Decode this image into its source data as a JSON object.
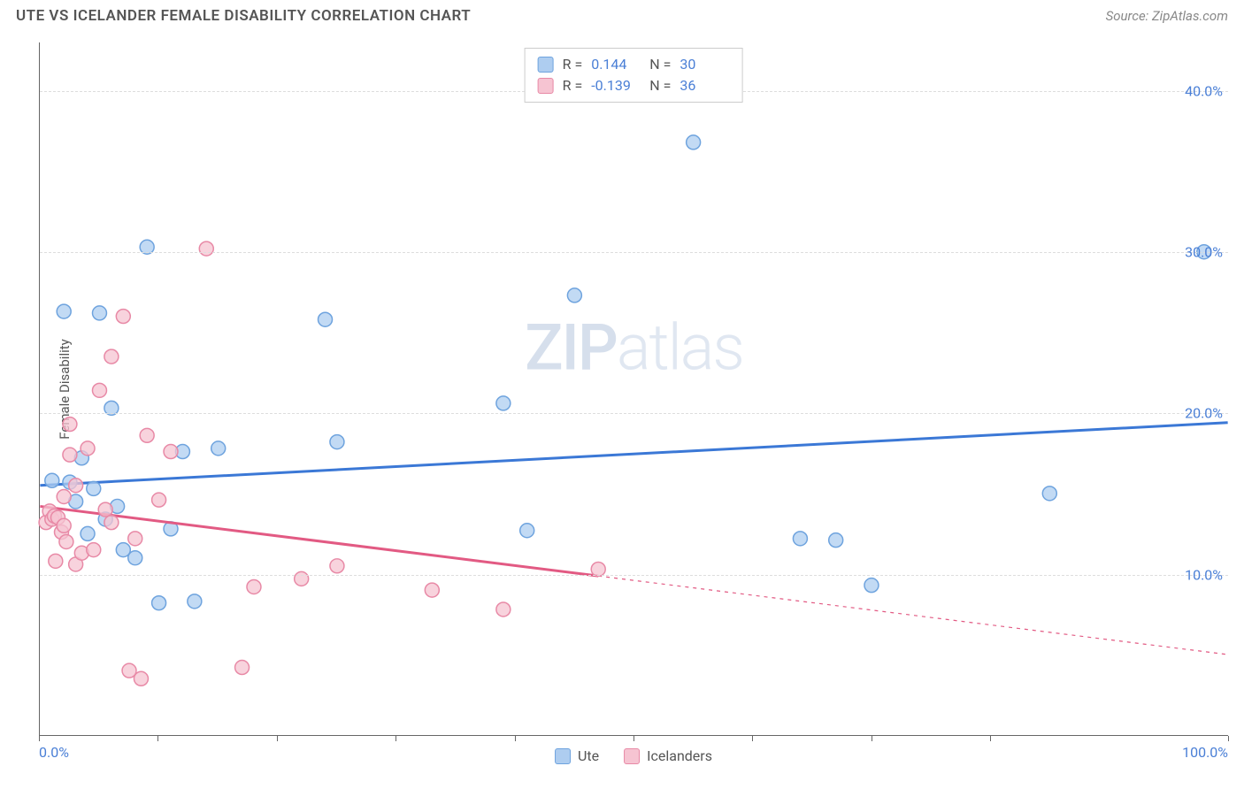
{
  "header": {
    "title": "UTE VS ICELANDER FEMALE DISABILITY CORRELATION CHART",
    "source": "Source: ZipAtlas.com"
  },
  "watermark": {
    "zip": "ZIP",
    "atlas": "atlas"
  },
  "chart": {
    "type": "scatter",
    "y_axis_label": "Female Disability",
    "xlim": [
      0,
      100
    ],
    "ylim": [
      0,
      43
    ],
    "x_ticks": [
      0,
      10,
      20,
      30,
      40,
      50,
      60,
      70,
      80,
      100
    ],
    "x_tick_labels": {
      "0": "0.0%",
      "100": "100.0%"
    },
    "y_ticks": [
      10,
      20,
      30,
      40
    ],
    "y_tick_labels": {
      "10": "10.0%",
      "20": "20.0%",
      "30": "30.0%",
      "40": "40.0%"
    },
    "grid_color": "#dddddd",
    "axis_color": "#666666",
    "background_color": "#ffffff",
    "marker_radius": 8,
    "marker_stroke_width": 1.5,
    "line_width": 3,
    "series": [
      {
        "name": "Ute",
        "fill": "#aecdf0",
        "stroke": "#6ea3de",
        "line_color": "#3b78d6",
        "r_value": "0.144",
        "n_value": "30",
        "trend": {
          "x1": 0,
          "y1": 15.5,
          "x2": 100,
          "y2": 19.4,
          "dash_after_x": null
        },
        "points": [
          [
            1,
            15.8
          ],
          [
            2,
            26.3
          ],
          [
            3,
            14.5
          ],
          [
            3.5,
            17.2
          ],
          [
            4,
            12.5
          ],
          [
            5,
            26.2
          ],
          [
            6,
            20.3
          ],
          [
            6.5,
            14.2
          ],
          [
            8,
            11.0
          ],
          [
            9,
            30.3
          ],
          [
            10,
            8.2
          ],
          [
            11,
            12.8
          ],
          [
            12,
            17.6
          ],
          [
            13,
            8.3
          ],
          [
            15,
            17.8
          ],
          [
            24,
            25.8
          ],
          [
            25,
            18.2
          ],
          [
            39,
            20.6
          ],
          [
            41,
            12.7
          ],
          [
            55,
            36.8
          ],
          [
            45,
            27.3
          ],
          [
            64,
            12.2
          ],
          [
            67,
            12.1
          ],
          [
            70,
            9.3
          ],
          [
            85,
            15.0
          ],
          [
            98,
            30.0
          ],
          [
            4.5,
            15.3
          ],
          [
            2.5,
            15.7
          ],
          [
            7,
            11.5
          ],
          [
            5.5,
            13.4
          ]
        ]
      },
      {
        "name": "Icelanders",
        "fill": "#f6c4d2",
        "stroke": "#e889a6",
        "line_color": "#e25a83",
        "r_value": "-0.139",
        "n_value": "36",
        "trend": {
          "x1": 0,
          "y1": 14.2,
          "x2": 100,
          "y2": 5.0,
          "dash_after_x": 47
        },
        "points": [
          [
            0.5,
            13.2
          ],
          [
            0.8,
            13.9
          ],
          [
            1,
            13.4
          ],
          [
            1.2,
            13.6
          ],
          [
            1.5,
            13.5
          ],
          [
            1.8,
            12.6
          ],
          [
            2,
            13.0
          ],
          [
            2,
            14.8
          ],
          [
            2.5,
            17.4
          ],
          [
            2.5,
            19.3
          ],
          [
            3,
            15.5
          ],
          [
            3,
            10.6
          ],
          [
            3.5,
            11.3
          ],
          [
            4,
            17.8
          ],
          [
            4.5,
            11.5
          ],
          [
            5,
            21.4
          ],
          [
            5.5,
            14.0
          ],
          [
            6,
            13.2
          ],
          [
            6,
            23.5
          ],
          [
            7,
            26.0
          ],
          [
            7.5,
            4.0
          ],
          [
            8,
            12.2
          ],
          [
            8.5,
            3.5
          ],
          [
            9,
            18.6
          ],
          [
            10,
            14.6
          ],
          [
            11,
            17.6
          ],
          [
            14,
            30.2
          ],
          [
            17,
            4.2
          ],
          [
            18,
            9.2
          ],
          [
            22,
            9.7
          ],
          [
            25,
            10.5
          ],
          [
            33,
            9.0
          ],
          [
            39,
            7.8
          ],
          [
            47,
            10.3
          ],
          [
            1.3,
            10.8
          ],
          [
            2.2,
            12.0
          ]
        ]
      }
    ],
    "stats_box": {
      "r_label": "R  =",
      "n_label": "N  ="
    },
    "bottom_legend": {
      "items": [
        "Ute",
        "Icelanders"
      ]
    }
  }
}
